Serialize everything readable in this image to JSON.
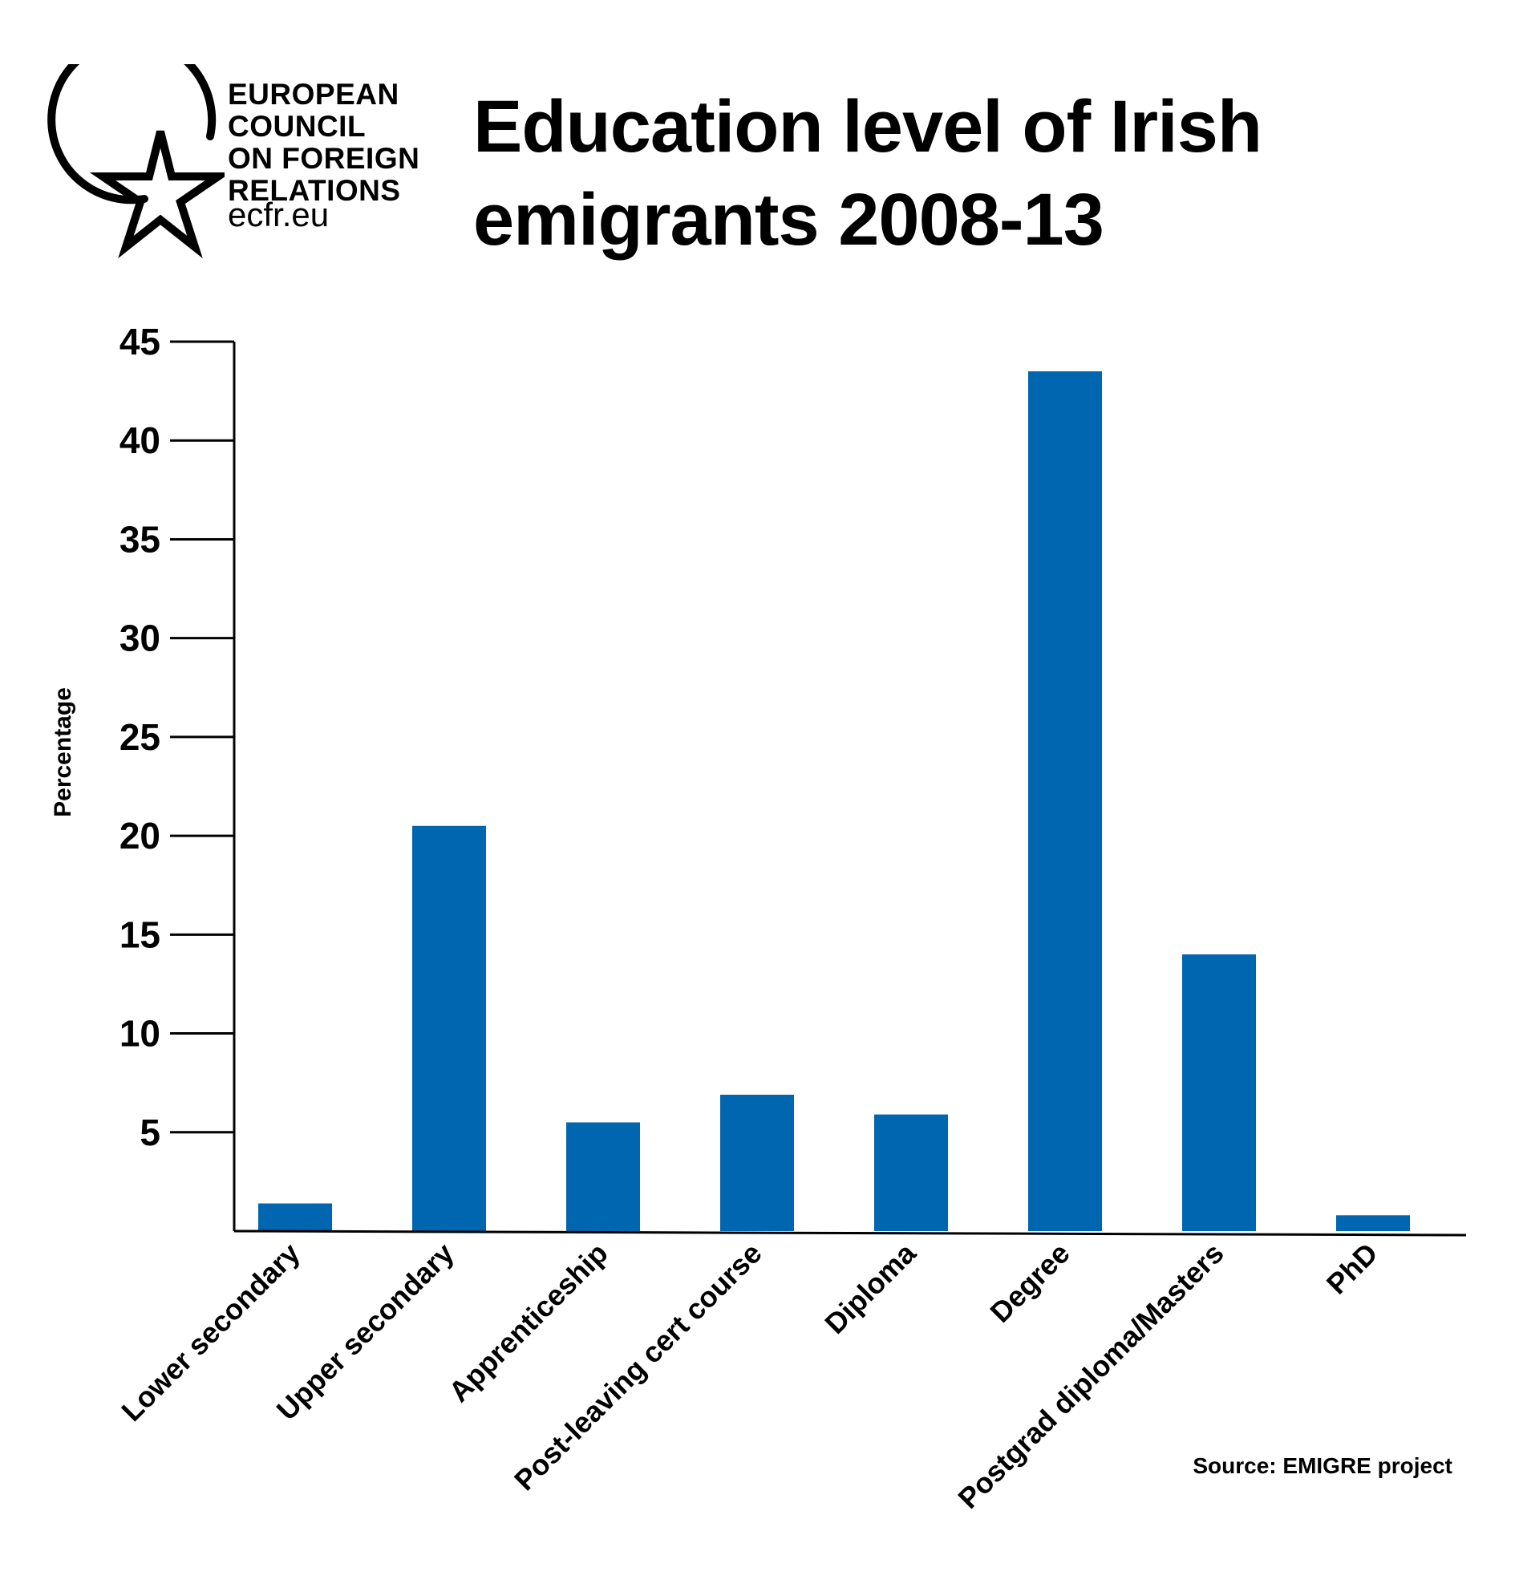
{
  "logo": {
    "lines": [
      "EUROPEAN",
      "COUNCIL",
      "ON FOREIGN",
      "RELATIONS"
    ],
    "url": "ecfr.eu"
  },
  "title": "Education level of Irish emigrants 2008-13",
  "source": "Source: EMIGRE project",
  "colors": {
    "bar": "#0066b0",
    "axis": "#000000"
  },
  "icons": {
    "logo_mark": "star-in-circle-icon"
  },
  "chart_data": {
    "type": "bar",
    "title": "Education level of Irish emigrants 2008-13",
    "xlabel": "",
    "ylabel": "Percentage",
    "categories": [
      "Lower secondary",
      "Upper secondary",
      "Apprenticeship",
      "Post-leaving cert course",
      "Diploma",
      "Degree",
      "Postgrad diploma/Masters",
      "PhD"
    ],
    "values": [
      1.4,
      20.5,
      5.5,
      6.9,
      5.9,
      43.5,
      14.0,
      0.8
    ],
    "ylim": [
      0,
      45
    ],
    "yticks": [
      5,
      10,
      15,
      20,
      25,
      30,
      35,
      40,
      45
    ],
    "grid": false,
    "legend": "none"
  }
}
